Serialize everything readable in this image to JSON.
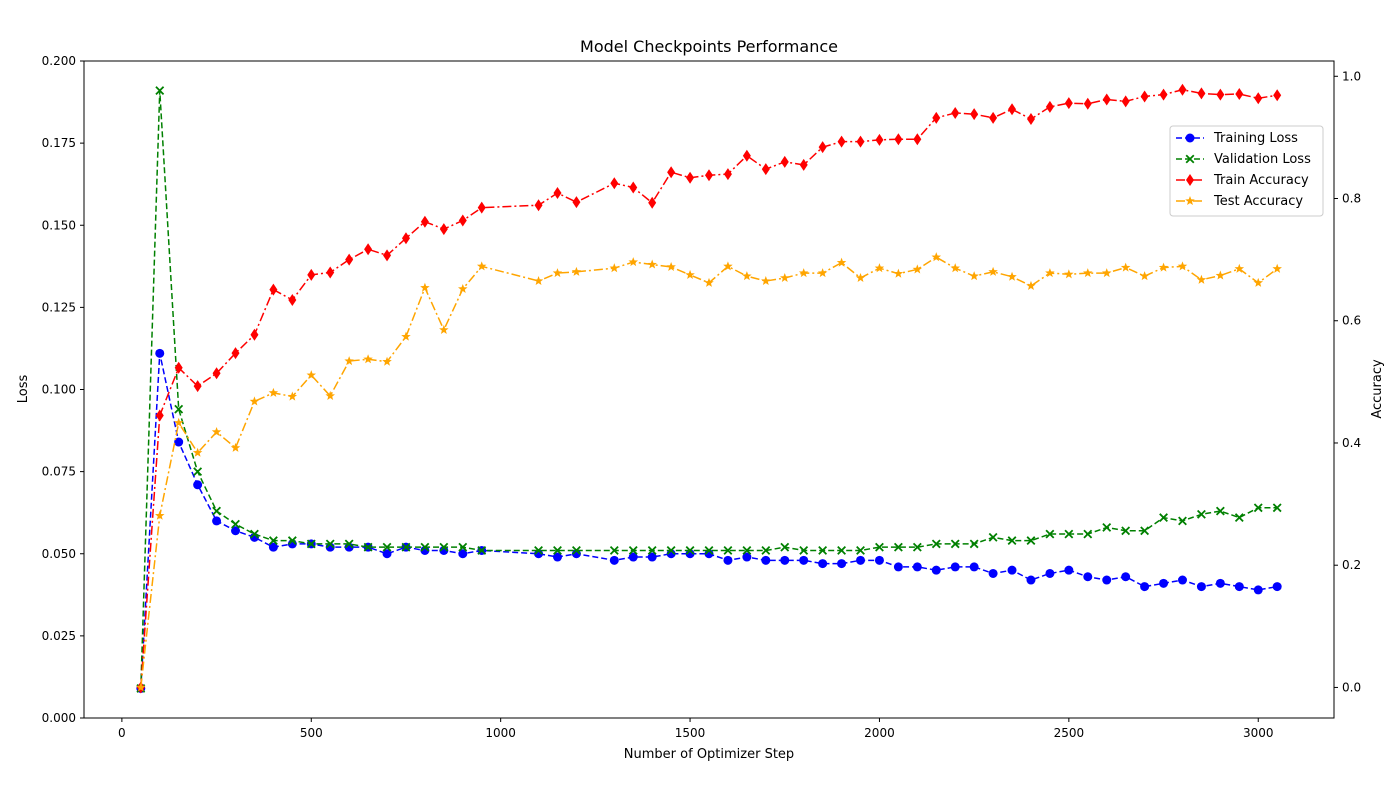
{
  "chart_data": {
    "type": "line",
    "title": "Model Checkpoints Performance",
    "xlabel": "Number of Optimizer Step",
    "ylabel_left": "Loss",
    "ylabel_right": "Accuracy",
    "xlim": [
      -100,
      3200
    ],
    "ylim_left": [
      0,
      0.2
    ],
    "ylim_right": [
      -0.05,
      1.025
    ],
    "x_ticks": [
      0,
      500,
      1000,
      1500,
      2000,
      2500,
      3000
    ],
    "y_left_ticks": [
      "0.000",
      "0.025",
      "0.050",
      "0.075",
      "0.100",
      "0.125",
      "0.150",
      "0.175",
      "0.200"
    ],
    "y_right_ticks": [
      "0.0",
      "0.2",
      "0.4",
      "0.6",
      "0.8",
      "1.0"
    ],
    "grid": false,
    "legend_position": "upper-right",
    "series": [
      {
        "name": "Training Loss",
        "axis": "left",
        "color": "#0000ff",
        "marker": "circle",
        "linestyle": "dashed",
        "x": [
          50,
          100,
          150,
          200,
          250,
          300,
          350,
          400,
          450,
          500,
          550,
          600,
          650,
          700,
          750,
          800,
          850,
          900,
          950,
          1100,
          1150,
          1200,
          1300,
          1350,
          1400,
          1450,
          1500,
          1550,
          1600,
          1650,
          1700,
          1750,
          1800,
          1850,
          1900,
          1950,
          2000,
          2050,
          2100,
          2150,
          2200,
          2250,
          2300,
          2350,
          2400,
          2450,
          2500,
          2550,
          2600,
          2650,
          2700,
          2750,
          2800,
          2850,
          2900,
          2950,
          3000,
          3050
        ],
        "y": [
          0.009,
          0.111,
          0.084,
          0.071,
          0.06,
          0.057,
          0.055,
          0.052,
          0.053,
          0.053,
          0.052,
          0.052,
          0.052,
          0.05,
          0.052,
          0.051,
          0.051,
          0.05,
          0.051,
          0.05,
          0.049,
          0.05,
          0.048,
          0.049,
          0.049,
          0.05,
          0.05,
          0.05,
          0.048,
          0.049,
          0.048,
          0.048,
          0.048,
          0.047,
          0.047,
          0.048,
          0.048,
          0.046,
          0.046,
          0.045,
          0.046,
          0.046,
          0.044,
          0.045,
          0.042,
          0.044,
          0.045,
          0.043,
          0.042,
          0.043,
          0.04,
          0.041,
          0.042,
          0.04,
          0.041,
          0.04,
          0.039,
          0.04
        ]
      },
      {
        "name": "Validation Loss",
        "axis": "left",
        "color": "#008000",
        "marker": "x",
        "linestyle": "dashed",
        "x": [
          50,
          100,
          150,
          200,
          250,
          300,
          350,
          400,
          450,
          500,
          550,
          600,
          650,
          700,
          750,
          800,
          850,
          900,
          950,
          1100,
          1150,
          1200,
          1300,
          1350,
          1400,
          1450,
          1500,
          1550,
          1600,
          1650,
          1700,
          1750,
          1800,
          1850,
          1900,
          1950,
          2000,
          2050,
          2100,
          2150,
          2200,
          2250,
          2300,
          2350,
          2400,
          2450,
          2500,
          2550,
          2600,
          2650,
          2700,
          2750,
          2800,
          2850,
          2900,
          2950,
          3000,
          3050
        ],
        "y": [
          0.009,
          0.191,
          0.094,
          0.075,
          0.063,
          0.059,
          0.056,
          0.054,
          0.054,
          0.053,
          0.053,
          0.053,
          0.052,
          0.052,
          0.052,
          0.052,
          0.052,
          0.052,
          0.051,
          0.051,
          0.051,
          0.051,
          0.051,
          0.051,
          0.051,
          0.051,
          0.051,
          0.051,
          0.051,
          0.051,
          0.051,
          0.052,
          0.051,
          0.051,
          0.051,
          0.051,
          0.052,
          0.052,
          0.052,
          0.053,
          0.053,
          0.053,
          0.055,
          0.054,
          0.054,
          0.056,
          0.056,
          0.056,
          0.058,
          0.057,
          0.057,
          0.061,
          0.06,
          0.062,
          0.063,
          0.061,
          0.064,
          0.064
        ]
      },
      {
        "name": "Train Accuracy",
        "axis": "right",
        "color": "#ff0000",
        "marker": "diamond",
        "linestyle": "dashdot",
        "x": [
          50,
          100,
          150,
          200,
          250,
          300,
          350,
          400,
          450,
          500,
          550,
          600,
          650,
          700,
          750,
          800,
          850,
          900,
          950,
          1100,
          1150,
          1200,
          1300,
          1350,
          1400,
          1450,
          1500,
          1550,
          1600,
          1650,
          1700,
          1750,
          1800,
          1850,
          1900,
          1950,
          2000,
          2050,
          2100,
          2150,
          2200,
          2250,
          2300,
          2350,
          2400,
          2450,
          2500,
          2550,
          2600,
          2650,
          2700,
          2750,
          2800,
          2850,
          2900,
          2950,
          3000,
          3050
        ],
        "y": [
          0.0,
          0.445,
          0.523,
          0.493,
          0.514,
          0.547,
          0.577,
          0.651,
          0.634,
          0.675,
          0.679,
          0.7,
          0.717,
          0.707,
          0.735,
          0.762,
          0.75,
          0.764,
          0.785,
          0.789,
          0.809,
          0.794,
          0.825,
          0.818,
          0.793,
          0.843,
          0.834,
          0.838,
          0.84,
          0.87,
          0.848,
          0.86,
          0.855,
          0.884,
          0.893,
          0.893,
          0.896,
          0.897,
          0.897,
          0.932,
          0.94,
          0.938,
          0.932,
          0.946,
          0.93,
          0.95,
          0.956,
          0.955,
          0.962,
          0.959,
          0.967,
          0.97,
          0.978,
          0.972,
          0.97,
          0.971,
          0.964,
          0.969
        ]
      },
      {
        "name": "Test Accuracy",
        "axis": "right",
        "color": "#ffa500",
        "marker": "star",
        "linestyle": "dashdot",
        "x": [
          50,
          100,
          150,
          200,
          250,
          300,
          350,
          400,
          450,
          500,
          550,
          600,
          650,
          700,
          750,
          800,
          850,
          900,
          950,
          1100,
          1150,
          1200,
          1300,
          1350,
          1400,
          1450,
          1500,
          1550,
          1600,
          1650,
          1700,
          1750,
          1800,
          1850,
          1900,
          1950,
          2000,
          2050,
          2100,
          2150,
          2200,
          2250,
          2300,
          2350,
          2400,
          2450,
          2500,
          2550,
          2600,
          2650,
          2700,
          2750,
          2800,
          2850,
          2900,
          2950,
          3000,
          3050
        ],
        "y": [
          0.0,
          0.281,
          0.433,
          0.384,
          0.418,
          0.392,
          0.468,
          0.482,
          0.476,
          0.511,
          0.477,
          0.534,
          0.537,
          0.533,
          0.574,
          0.654,
          0.585,
          0.652,
          0.689,
          0.665,
          0.678,
          0.68,
          0.686,
          0.696,
          0.692,
          0.688,
          0.675,
          0.662,
          0.689,
          0.673,
          0.665,
          0.67,
          0.678,
          0.678,
          0.695,
          0.67,
          0.686,
          0.677,
          0.684,
          0.704,
          0.686,
          0.673,
          0.68,
          0.672,
          0.657,
          0.678,
          0.676,
          0.678,
          0.678,
          0.687,
          0.673,
          0.687,
          0.689,
          0.667,
          0.674,
          0.685,
          0.662,
          0.685
        ]
      }
    ]
  }
}
